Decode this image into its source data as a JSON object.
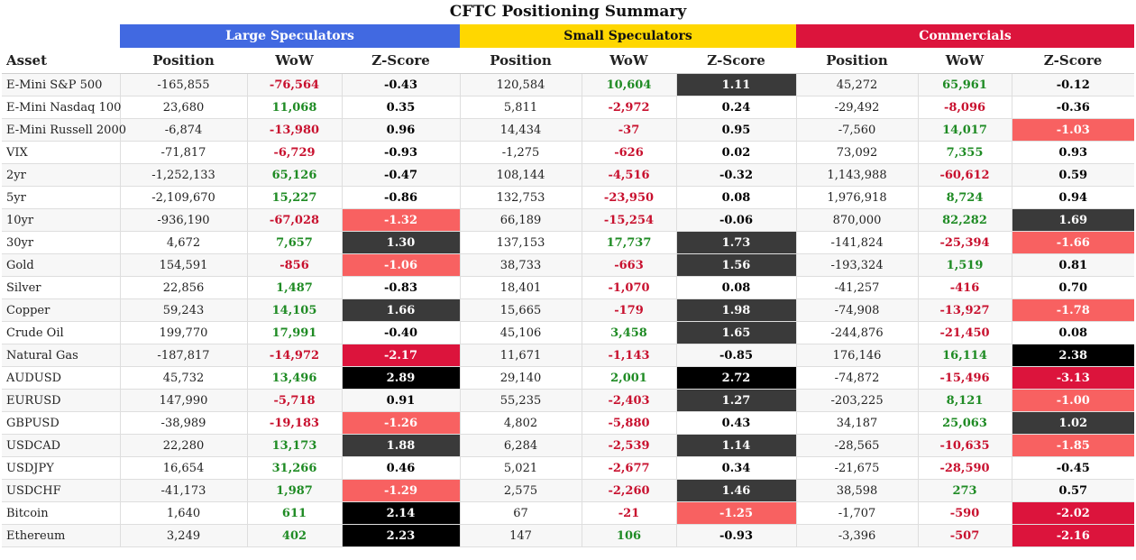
{
  "title": "CFTC Positioning Summary",
  "groups": {
    "large": "Large Speculators",
    "small": "Small Speculators",
    "commercials": "Commercials"
  },
  "headers": {
    "asset": "Asset",
    "position": "Position",
    "wow": "WoW",
    "zscore": "Z-Score"
  },
  "colors": {
    "large": "#4169e1",
    "small": "#ffd700",
    "commercials": "#dc143c",
    "positive": "#1f8b24",
    "negative": "#c8102e"
  },
  "rows": [
    {
      "asset": "E-Mini S&P 500",
      "large": {
        "position": "-165,855",
        "wow": "-76,564",
        "z": "-0.43"
      },
      "small": {
        "position": "120,584",
        "wow": "10,604",
        "z": "1.11"
      },
      "comm": {
        "position": "45,272",
        "wow": "65,961",
        "z": "-0.12"
      }
    },
    {
      "asset": "E-Mini Nasdaq 100",
      "large": {
        "position": "23,680",
        "wow": "11,068",
        "z": "0.35"
      },
      "small": {
        "position": "5,811",
        "wow": "-2,972",
        "z": "0.24"
      },
      "comm": {
        "position": "-29,492",
        "wow": "-8,096",
        "z": "-0.36"
      }
    },
    {
      "asset": "E-Mini Russell 2000",
      "large": {
        "position": "-6,874",
        "wow": "-13,980",
        "z": "0.96"
      },
      "small": {
        "position": "14,434",
        "wow": "-37",
        "z": "0.95"
      },
      "comm": {
        "position": "-7,560",
        "wow": "14,017",
        "z": "-1.03"
      }
    },
    {
      "asset": "VIX",
      "large": {
        "position": "-71,817",
        "wow": "-6,729",
        "z": "-0.93"
      },
      "small": {
        "position": "-1,275",
        "wow": "-626",
        "z": "0.02"
      },
      "comm": {
        "position": "73,092",
        "wow": "7,355",
        "z": "0.93"
      }
    },
    {
      "asset": "2yr",
      "large": {
        "position": "-1,252,133",
        "wow": "65,126",
        "z": "-0.47"
      },
      "small": {
        "position": "108,144",
        "wow": "-4,516",
        "z": "-0.32"
      },
      "comm": {
        "position": "1,143,988",
        "wow": "-60,612",
        "z": "0.59"
      }
    },
    {
      "asset": "5yr",
      "large": {
        "position": "-2,109,670",
        "wow": "15,227",
        "z": "-0.86"
      },
      "small": {
        "position": "132,753",
        "wow": "-23,950",
        "z": "0.08"
      },
      "comm": {
        "position": "1,976,918",
        "wow": "8,724",
        "z": "0.94"
      }
    },
    {
      "asset": "10yr",
      "large": {
        "position": "-936,190",
        "wow": "-67,028",
        "z": "-1.32"
      },
      "small": {
        "position": "66,189",
        "wow": "-15,254",
        "z": "-0.06"
      },
      "comm": {
        "position": "870,000",
        "wow": "82,282",
        "z": "1.69"
      }
    },
    {
      "asset": "30yr",
      "large": {
        "position": "4,672",
        "wow": "7,657",
        "z": "1.30"
      },
      "small": {
        "position": "137,153",
        "wow": "17,737",
        "z": "1.73"
      },
      "comm": {
        "position": "-141,824",
        "wow": "-25,394",
        "z": "-1.66"
      }
    },
    {
      "asset": "Gold",
      "large": {
        "position": "154,591",
        "wow": "-856",
        "z": "-1.06"
      },
      "small": {
        "position": "38,733",
        "wow": "-663",
        "z": "1.56"
      },
      "comm": {
        "position": "-193,324",
        "wow": "1,519",
        "z": "0.81"
      }
    },
    {
      "asset": "Silver",
      "large": {
        "position": "22,856",
        "wow": "1,487",
        "z": "-0.83"
      },
      "small": {
        "position": "18,401",
        "wow": "-1,070",
        "z": "0.08"
      },
      "comm": {
        "position": "-41,257",
        "wow": "-416",
        "z": "0.70"
      }
    },
    {
      "asset": "Copper",
      "large": {
        "position": "59,243",
        "wow": "14,105",
        "z": "1.66"
      },
      "small": {
        "position": "15,665",
        "wow": "-179",
        "z": "1.98"
      },
      "comm": {
        "position": "-74,908",
        "wow": "-13,927",
        "z": "-1.78"
      }
    },
    {
      "asset": "Crude Oil",
      "large": {
        "position": "199,770",
        "wow": "17,991",
        "z": "-0.40"
      },
      "small": {
        "position": "45,106",
        "wow": "3,458",
        "z": "1.65"
      },
      "comm": {
        "position": "-244,876",
        "wow": "-21,450",
        "z": "0.08"
      }
    },
    {
      "asset": "Natural Gas",
      "large": {
        "position": "-187,817",
        "wow": "-14,972",
        "z": "-2.17"
      },
      "small": {
        "position": "11,671",
        "wow": "-1,143",
        "z": "-0.85"
      },
      "comm": {
        "position": "176,146",
        "wow": "16,114",
        "z": "2.38"
      }
    },
    {
      "asset": "AUDUSD",
      "large": {
        "position": "45,732",
        "wow": "13,496",
        "z": "2.89"
      },
      "small": {
        "position": "29,140",
        "wow": "2,001",
        "z": "2.72"
      },
      "comm": {
        "position": "-74,872",
        "wow": "-15,496",
        "z": "-3.13"
      }
    },
    {
      "asset": "EURUSD",
      "large": {
        "position": "147,990",
        "wow": "-5,718",
        "z": "0.91"
      },
      "small": {
        "position": "55,235",
        "wow": "-2,403",
        "z": "1.27"
      },
      "comm": {
        "position": "-203,225",
        "wow": "8,121",
        "z": "-1.00"
      }
    },
    {
      "asset": "GBPUSD",
      "large": {
        "position": "-38,989",
        "wow": "-19,183",
        "z": "-1.26"
      },
      "small": {
        "position": "4,802",
        "wow": "-5,880",
        "z": "0.43"
      },
      "comm": {
        "position": "34,187",
        "wow": "25,063",
        "z": "1.02"
      }
    },
    {
      "asset": "USDCAD",
      "large": {
        "position": "22,280",
        "wow": "13,173",
        "z": "1.88"
      },
      "small": {
        "position": "6,284",
        "wow": "-2,539",
        "z": "1.14"
      },
      "comm": {
        "position": "-28,565",
        "wow": "-10,635",
        "z": "-1.85"
      }
    },
    {
      "asset": "USDJPY",
      "large": {
        "position": "16,654",
        "wow": "31,266",
        "z": "0.46"
      },
      "small": {
        "position": "5,021",
        "wow": "-2,677",
        "z": "0.34"
      },
      "comm": {
        "position": "-21,675",
        "wow": "-28,590",
        "z": "-0.45"
      }
    },
    {
      "asset": "USDCHF",
      "large": {
        "position": "-41,173",
        "wow": "1,987",
        "z": "-1.29"
      },
      "small": {
        "position": "2,575",
        "wow": "-2,260",
        "z": "1.46"
      },
      "comm": {
        "position": "38,598",
        "wow": "273",
        "z": "0.57"
      }
    },
    {
      "asset": "Bitcoin",
      "large": {
        "position": "1,640",
        "wow": "611",
        "z": "2.14"
      },
      "small": {
        "position": "67",
        "wow": "-21",
        "z": "-1.25"
      },
      "comm": {
        "position": "-1,707",
        "wow": "-590",
        "z": "-2.02"
      }
    },
    {
      "asset": "Ethereum",
      "large": {
        "position": "3,249",
        "wow": "402",
        "z": "2.23"
      },
      "small": {
        "position": "147",
        "wow": "106",
        "z": "-0.93"
      },
      "comm": {
        "position": "-3,396",
        "wow": "-507",
        "z": "-2.16"
      }
    }
  ]
}
